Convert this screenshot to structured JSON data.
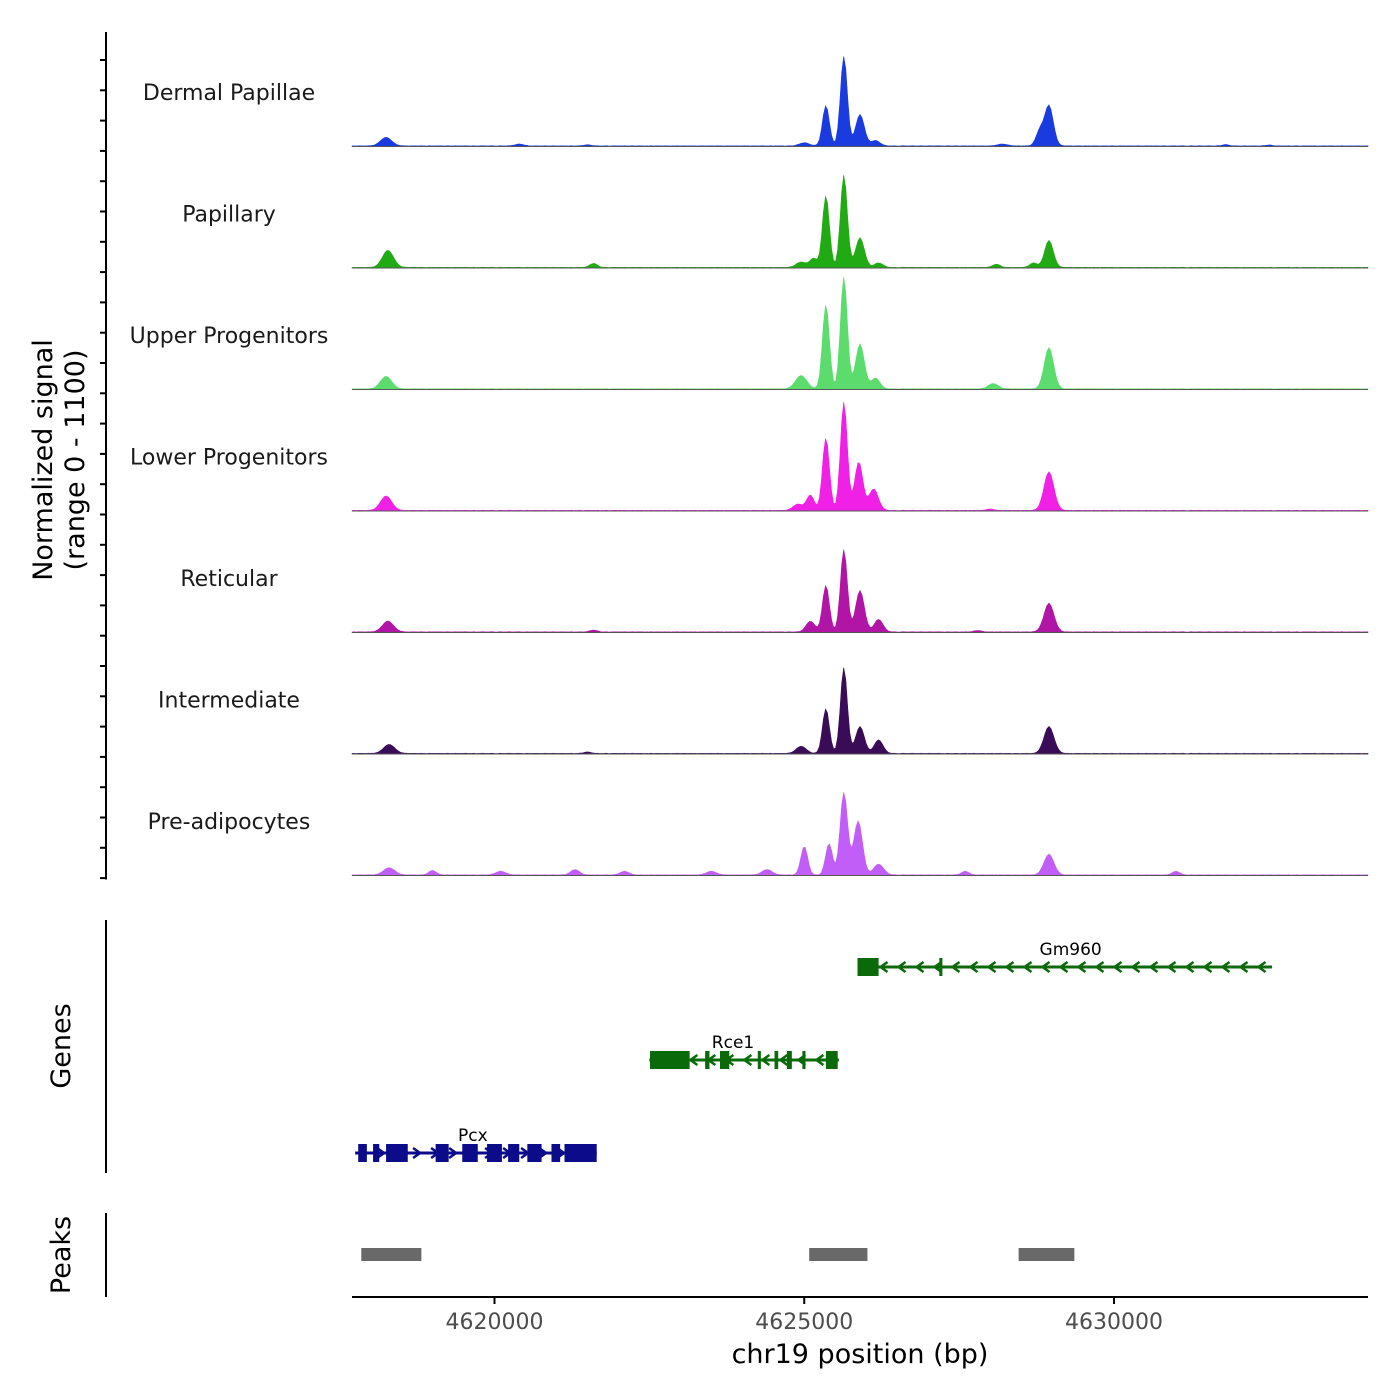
{
  "chart_data": {
    "type": "area",
    "title": "",
    "xlabel": "chr19 position (bp)",
    "xlim": [
      4617700,
      4634100
    ],
    "x_ticks": [
      4620000,
      4625000,
      4630000
    ],
    "x_tick_labels": [
      "4620000",
      "4625000",
      "4630000"
    ],
    "coverage_ylabel_line1": "Normalized signal",
    "coverage_ylabel_line2": "(range 0 - 1100)",
    "ylim": [
      0,
      1100
    ],
    "genes_ylabel": "Genes",
    "peaks_ylabel": "Peaks",
    "series": [
      {
        "name": "Dermal Papillae",
        "color": "#1a3be0",
        "peaks": [
          [
            4618250,
            95,
            90
          ],
          [
            4620400,
            20,
            70
          ],
          [
            4621500,
            12,
            60
          ],
          [
            4625000,
            35,
            80
          ],
          [
            4625350,
            450,
            55
          ],
          [
            4625640,
            1000,
            55
          ],
          [
            4625900,
            350,
            70
          ],
          [
            4626150,
            60,
            70
          ],
          [
            4628200,
            20,
            80
          ],
          [
            4628800,
            160,
            60
          ],
          [
            4628950,
            450,
            70
          ],
          [
            4631800,
            15,
            50
          ],
          [
            4632500,
            10,
            50
          ]
        ]
      },
      {
        "name": "Papillary",
        "color": "#22aa14",
        "peaks": [
          [
            4618280,
            190,
            90
          ],
          [
            4621600,
            45,
            60
          ],
          [
            4624950,
            60,
            80
          ],
          [
            4625150,
            100,
            60
          ],
          [
            4625350,
            800,
            55
          ],
          [
            4625640,
            1030,
            55
          ],
          [
            4625900,
            330,
            70
          ],
          [
            4626200,
            50,
            70
          ],
          [
            4628100,
            35,
            60
          ],
          [
            4628700,
            50,
            60
          ],
          [
            4628950,
            300,
            70
          ]
        ]
      },
      {
        "name": "Upper Progenitors",
        "color": "#5cdc6c",
        "peaks": [
          [
            4618250,
            140,
            90
          ],
          [
            4624950,
            150,
            90
          ],
          [
            4625350,
            940,
            55
          ],
          [
            4625640,
            1250,
            55
          ],
          [
            4625900,
            500,
            70
          ],
          [
            4626150,
            120,
            70
          ],
          [
            4628050,
            60,
            80
          ],
          [
            4628950,
            460,
            75
          ]
        ]
      },
      {
        "name": "Lower Progenitors",
        "color": "#f020e6",
        "peaks": [
          [
            4618250,
            160,
            90
          ],
          [
            4624900,
            70,
            80
          ],
          [
            4625100,
            170,
            60
          ],
          [
            4625350,
            810,
            55
          ],
          [
            4625640,
            1210,
            55
          ],
          [
            4625880,
            540,
            65
          ],
          [
            4626120,
            240,
            75
          ],
          [
            4628000,
            15,
            60
          ],
          [
            4628950,
            430,
            80
          ]
        ]
      },
      {
        "name": "Reticular",
        "color": "#b015a5",
        "peaks": [
          [
            4618280,
            120,
            90
          ],
          [
            4621600,
            20,
            60
          ],
          [
            4625100,
            120,
            70
          ],
          [
            4625350,
            520,
            55
          ],
          [
            4625640,
            920,
            55
          ],
          [
            4625900,
            460,
            70
          ],
          [
            4626200,
            140,
            70
          ],
          [
            4627800,
            15,
            60
          ],
          [
            4628950,
            320,
            80
          ]
        ]
      },
      {
        "name": "Intermediate",
        "color": "#3a0c58",
        "peaks": [
          [
            4618300,
            100,
            90
          ],
          [
            4621500,
            15,
            60
          ],
          [
            4624950,
            80,
            80
          ],
          [
            4625350,
            500,
            55
          ],
          [
            4625640,
            960,
            55
          ],
          [
            4625900,
            300,
            70
          ],
          [
            4626200,
            150,
            70
          ],
          [
            4628950,
            300,
            80
          ]
        ]
      },
      {
        "name": "Pre-adipocytes",
        "color": "#c25ef8",
        "peaks": [
          [
            4618300,
            80,
            90
          ],
          [
            4619000,
            50,
            60
          ],
          [
            4620100,
            40,
            80
          ],
          [
            4621300,
            60,
            70
          ],
          [
            4622100,
            40,
            70
          ],
          [
            4623500,
            40,
            80
          ],
          [
            4624400,
            60,
            80
          ],
          [
            4625000,
            320,
            55
          ],
          [
            4625400,
            350,
            55
          ],
          [
            4625640,
            920,
            60
          ],
          [
            4625870,
            600,
            70
          ],
          [
            4626200,
            120,
            80
          ],
          [
            4627600,
            40,
            60
          ],
          [
            4628950,
            230,
            80
          ],
          [
            4631000,
            40,
            60
          ]
        ]
      }
    ],
    "genes": [
      {
        "name": "Pcx",
        "color": "#0c0c8a",
        "strand": "+",
        "row": 3,
        "start": 4617750,
        "end": 4621650,
        "label_x": 4619650,
        "exons": [
          [
            4617800,
            4617940
          ],
          [
            4618040,
            4618140
          ],
          [
            4618250,
            4618600
          ],
          [
            4619050,
            4619260
          ],
          [
            4619480,
            4619730
          ],
          [
            4619880,
            4620120
          ],
          [
            4620220,
            4620400
          ],
          [
            4620530,
            4620760
          ],
          [
            4620920,
            4621060
          ],
          [
            4621130,
            4621650
          ]
        ]
      },
      {
        "name": "Rce1",
        "color": "#0a6a0a",
        "strand": "-",
        "row": 2,
        "start": 4622500,
        "end": 4625560,
        "label_x": 4623850,
        "exons": [
          [
            4622510,
            4623150
          ],
          [
            4623400,
            4623470
          ],
          [
            4623640,
            4623790
          ],
          [
            4624250,
            4624300
          ],
          [
            4624520,
            4624580
          ],
          [
            4624720,
            4624800
          ],
          [
            4624970,
            4625020
          ],
          [
            4625350,
            4625540
          ]
        ]
      },
      {
        "name": "Gm960",
        "color": "#0a6a0a",
        "strand": "-",
        "row": 1,
        "start": 4625860,
        "end": 4632550,
        "label_x": 4629300,
        "exons": [
          [
            4625860,
            4626200
          ],
          [
            4627180,
            4627230
          ]
        ]
      }
    ],
    "peaks": [
      [
        4617850,
        4618820
      ],
      [
        4625080,
        4626020
      ],
      [
        4628460,
        4629360
      ]
    ]
  }
}
